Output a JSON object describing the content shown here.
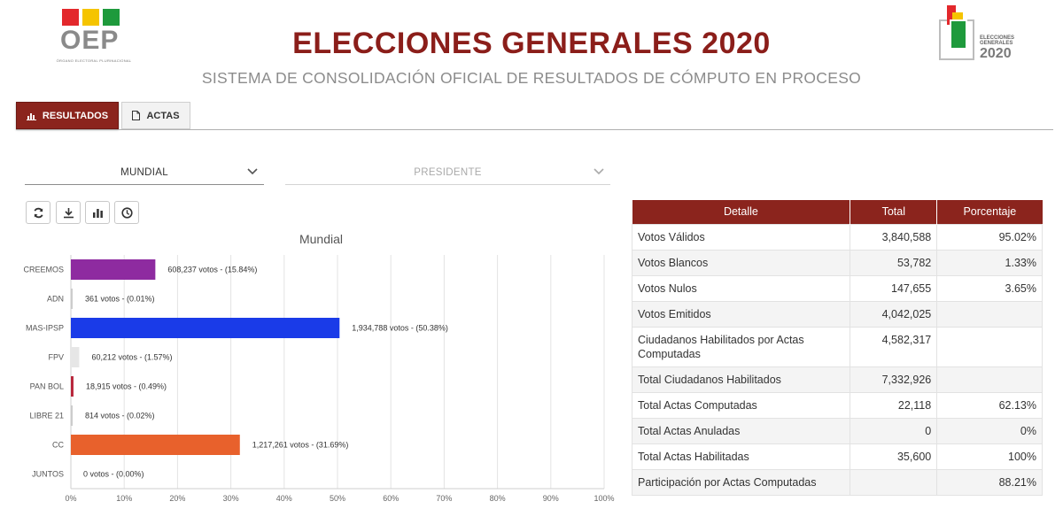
{
  "header": {
    "title": "ELECCIONES GENERALES 2020",
    "subtitle": "SISTEMA DE CONSOLIDACIÓN OFICIAL DE RESULTADOS DE CÓMPUTO EN PROCESO",
    "left_logo": {
      "text": "OEP",
      "subtext": "ÓRGANO ELECTORAL PLURINACIONAL",
      "colors": [
        "#e3282c",
        "#f5c400",
        "#1e9a3c"
      ]
    },
    "right_logo": {
      "line1": "ELECCIONES",
      "line2": "GENERALES",
      "year": "2020"
    }
  },
  "tabs": [
    {
      "label": "RESULTADOS",
      "icon": "bar-chart-icon",
      "active": true
    },
    {
      "label": "ACTAS",
      "icon": "document-icon",
      "active": false
    }
  ],
  "filters": {
    "scope": {
      "value": "MUNDIAL"
    },
    "race": {
      "value": "PRESIDENTE"
    }
  },
  "toolbar": [
    {
      "icon": "refresh-icon"
    },
    {
      "icon": "download-icon"
    },
    {
      "icon": "bar-chart-icon"
    },
    {
      "icon": "clock-icon"
    }
  ],
  "chart_data": {
    "type": "bar",
    "orientation": "horizontal",
    "title": "Mundial",
    "categories": [
      "CREEMOS",
      "ADN",
      "MAS-IPSP",
      "FPV",
      "PAN BOL",
      "LIBRE 21",
      "CC",
      "JUNTOS"
    ],
    "values": [
      15.84,
      0.01,
      50.38,
      1.57,
      0.49,
      0.02,
      31.69,
      0.0
    ],
    "labels": [
      "608,237 votos - (15.84%)",
      "361 votos - (0.01%)",
      "1,934,788 votos - (50.38%)",
      "60,212 votos - (1.57%)",
      "18,915 votos - (0.49%)",
      "814 votos - (0.02%)",
      "1,217,261 votos - (31.69%)",
      "0 votos - (0.00%)"
    ],
    "colors": [
      "#8e2ba0",
      "#cccccc",
      "#1a3be8",
      "#e6e6e6",
      "#b8263b",
      "#cccccc",
      "#e8612c",
      "#cccccc"
    ],
    "xlim": [
      0,
      100
    ],
    "xticks": [
      "0%",
      "10%",
      "20%",
      "30%",
      "40%",
      "50%",
      "60%",
      "70%",
      "80%",
      "90%",
      "100%"
    ],
    "grid": true
  },
  "table": {
    "headers": [
      "Detalle",
      "Total",
      "Porcentaje"
    ],
    "rows": [
      {
        "detalle": "Votos Válidos",
        "total": "3,840,588",
        "porcentaje": "95.02%"
      },
      {
        "detalle": "Votos Blancos",
        "total": "53,782",
        "porcentaje": "1.33%"
      },
      {
        "detalle": "Votos Nulos",
        "total": "147,655",
        "porcentaje": "3.65%"
      },
      {
        "detalle": "Votos Emitidos",
        "total": "4,042,025",
        "porcentaje": ""
      },
      {
        "detalle": "Ciudadanos Habilitados por Actas Computadas",
        "total": "4,582,317",
        "porcentaje": ""
      },
      {
        "detalle": "Total Ciudadanos Habilitados",
        "total": "7,332,926",
        "porcentaje": ""
      },
      {
        "detalle": "Total Actas Computadas",
        "total": "22,118",
        "porcentaje": "62.13%"
      },
      {
        "detalle": "Total Actas Anuladas",
        "total": "0",
        "porcentaje": "0%"
      },
      {
        "detalle": "Total Actas Habilitadas",
        "total": "35,600",
        "porcentaje": "100%"
      },
      {
        "detalle": "Participación por Actas Computadas",
        "total": "",
        "porcentaje": "88.21%"
      }
    ]
  }
}
